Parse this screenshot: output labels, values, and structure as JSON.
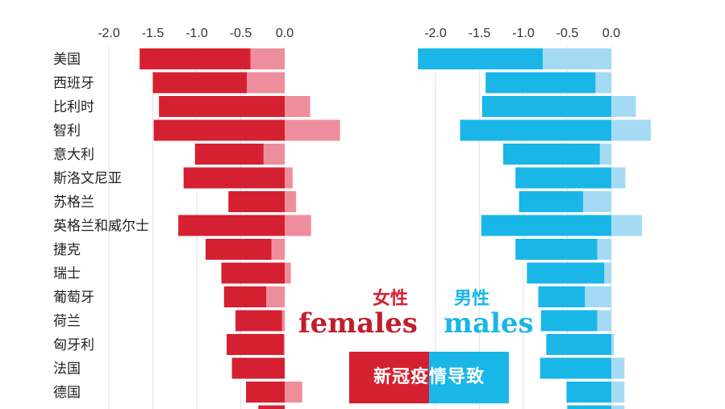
{
  "chart_data": {
    "type": "bar",
    "orientation": "horizontal",
    "categories": [
      "美国",
      "西班牙",
      "比利时",
      "智利",
      "意大利",
      "斯洛文尼亚",
      "苏格兰",
      "英格兰和威尔士",
      "捷克",
      "瑞士",
      "葡萄牙",
      "荷兰",
      "匈牙利",
      "法国",
      "德国",
      ""
    ],
    "panels": [
      {
        "name": "女性",
        "label_en": "females",
        "color_dark": "#d42030",
        "color_light": "#ee8e9c",
        "xlim": [
          -2.0,
          0.5
        ],
        "ticks": [
          -2.0,
          -1.5,
          -1.0,
          -0.5,
          0.0
        ],
        "tick_labels": [
          "-2.0",
          "-1.5",
          "-1.0",
          "-0.5",
          "0.0"
        ],
        "total": [
          -1.65,
          -1.5,
          -1.43,
          -1.49,
          -1.02,
          -1.15,
          -0.64,
          -1.21,
          -0.9,
          -0.72,
          -0.69,
          -0.56,
          -0.66,
          -0.6,
          -0.44,
          -0.3
        ],
        "light": [
          -0.39,
          -0.43,
          0.29,
          0.63,
          -0.24,
          0.09,
          0.13,
          0.3,
          -0.15,
          0.07,
          -0.21,
          -0.03,
          -0.01,
          0.0,
          0.2,
          0.0
        ]
      },
      {
        "name": "男性",
        "label_en": "males",
        "color_dark": "#1ab6e8",
        "color_light": "#a5daf5",
        "xlim": [
          -2.0,
          0.5
        ],
        "ticks": [
          -2.0,
          -1.5,
          -1.0,
          -0.5,
          0.0
        ],
        "tick_labels": [
          "-2.0",
          "-1.5",
          "-1.0",
          "-0.5",
          "0.0"
        ],
        "total": [
          -2.2,
          -1.43,
          -1.47,
          -1.72,
          -1.23,
          -1.09,
          -1.05,
          -1.48,
          -1.09,
          -0.96,
          -0.83,
          -0.8,
          -0.74,
          -0.81,
          -0.51,
          -0.5
        ],
        "light": [
          -0.78,
          -0.18,
          0.28,
          0.45,
          -0.13,
          0.16,
          -0.32,
          0.35,
          -0.16,
          -0.08,
          -0.3,
          -0.16,
          0.03,
          0.15,
          0.15,
          0.15
        ]
      }
    ],
    "grid": true,
    "legend": "none"
  },
  "annotations": {
    "female_cn": "女性",
    "female_en": "females",
    "male_cn": "男性",
    "male_en": "males",
    "banner": "新冠疫情导致",
    "banner_colors": [
      "#d42030",
      "#1ab6e8"
    ]
  }
}
